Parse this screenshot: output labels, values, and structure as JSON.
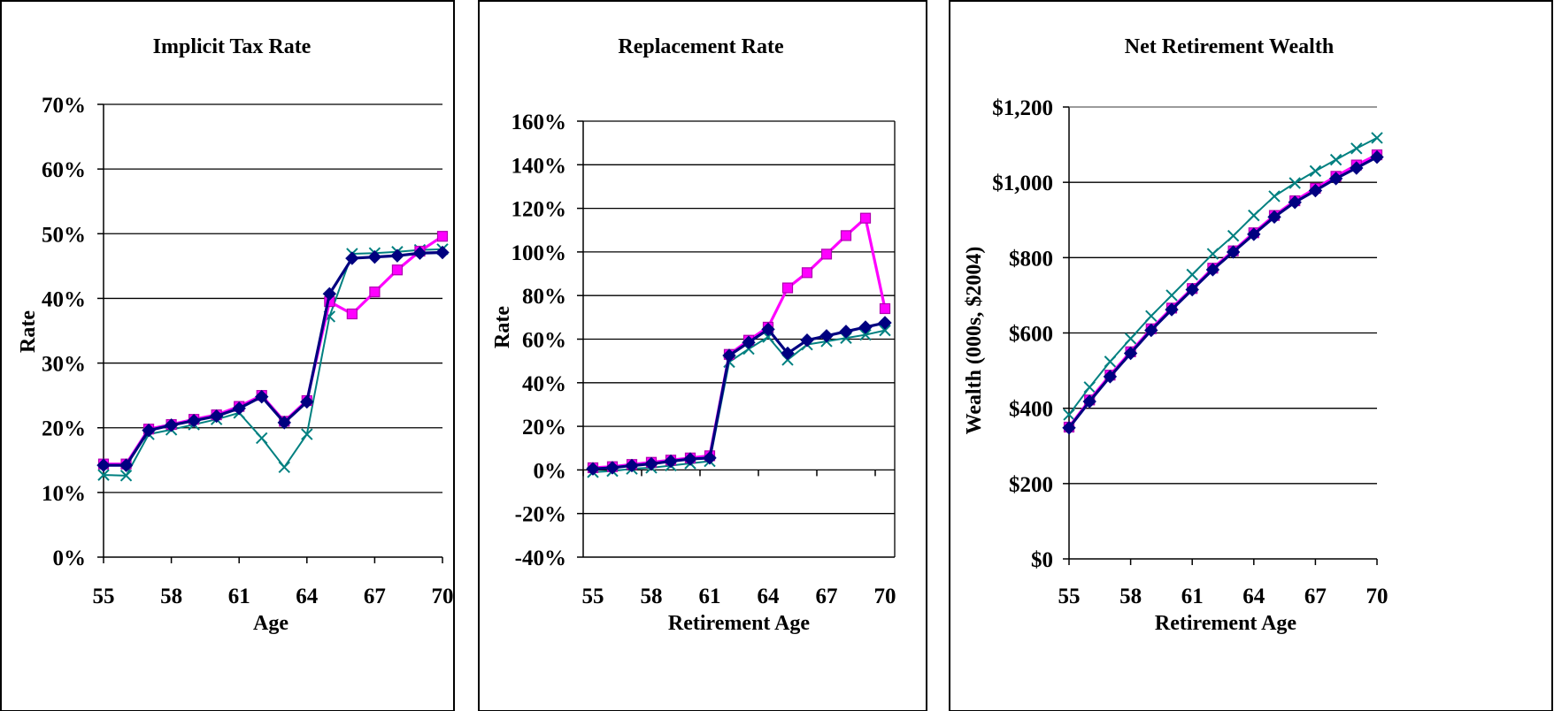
{
  "colors": {
    "frame": "#000000",
    "grid": "#000000",
    "series_a": "#000080",
    "series_b": "#ff00ff",
    "series_c": "#008080"
  },
  "chart_data": [
    {
      "type": "line",
      "title": "Implicit Tax Rate",
      "xlabel": "Age",
      "ylabel": "Rate",
      "x": [
        55,
        56,
        57,
        58,
        59,
        60,
        61,
        62,
        63,
        64,
        65,
        66,
        67,
        68,
        69,
        70
      ],
      "x_tick_labels": [
        "55",
        "58",
        "61",
        "64",
        "67",
        "70"
      ],
      "y_tick_labels": [
        "0%",
        "10%",
        "20%",
        "30%",
        "40%",
        "50%",
        "60%",
        "70%"
      ],
      "ylim": [
        0,
        70
      ],
      "grid": true,
      "series": [
        {
          "marker": "diamond",
          "color": "#000080",
          "values": [
            14.2,
            14.2,
            19.6,
            20.4,
            21.1,
            21.8,
            23.0,
            24.8,
            20.8,
            24.0,
            40.7,
            46.2,
            46.4,
            46.6,
            47.0,
            47.1
          ]
        },
        {
          "marker": "square",
          "color": "#ff00ff",
          "values": [
            14.4,
            14.4,
            19.8,
            20.5,
            21.3,
            22.0,
            23.3,
            25.0,
            21.0,
            24.2,
            39.5,
            37.6,
            41.0,
            44.4,
            47.3,
            49.6
          ]
        },
        {
          "marker": "x",
          "color": "#008080",
          "values": [
            12.7,
            12.6,
            19.0,
            19.7,
            20.5,
            21.3,
            22.3,
            18.4,
            13.9,
            19.0,
            37.2,
            46.9,
            47.0,
            47.2,
            47.5,
            47.6
          ]
        }
      ]
    },
    {
      "type": "line",
      "title": "Replacement Rate",
      "xlabel": "Retirement Age",
      "ylabel": "Rate",
      "x": [
        55,
        56,
        57,
        58,
        59,
        60,
        61,
        62,
        63,
        64,
        65,
        66,
        67,
        68,
        69,
        70
      ],
      "x_tick_labels": [
        "55",
        "58",
        "61",
        "64",
        "67",
        "70"
      ],
      "y_tick_labels": [
        "-40%",
        "-20%",
        "0%",
        "20%",
        "40%",
        "60%",
        "80%",
        "100%",
        "120%",
        "140%",
        "160%"
      ],
      "ylim": [
        -40,
        160
      ],
      "grid": true,
      "series": [
        {
          "marker": "diamond",
          "color": "#000080",
          "values": [
            0.5,
            1.0,
            2.0,
            2.8,
            4.0,
            5.0,
            5.5,
            52.5,
            58.5,
            64.5,
            53.5,
            59.5,
            61.5,
            63.5,
            65.5,
            67.5
          ]
        },
        {
          "marker": "square",
          "color": "#ff00ff",
          "values": [
            1.0,
            1.5,
            2.5,
            3.5,
            4.5,
            5.5,
            6.5,
            53.0,
            59.5,
            65.5,
            83.5,
            90.5,
            99.0,
            107.5,
            115.5,
            74.0
          ]
        },
        {
          "marker": "x",
          "color": "#008080",
          "values": [
            -1.0,
            -0.5,
            0.5,
            1.0,
            2.0,
            3.0,
            4.0,
            49.5,
            55.5,
            61.0,
            50.5,
            57.5,
            59.0,
            60.5,
            62.0,
            64.0
          ]
        }
      ]
    },
    {
      "type": "line",
      "title": "Net Retirement Wealth",
      "xlabel": "Retirement Age",
      "ylabel": "Wealth (000s, $2004)",
      "x": [
        55,
        56,
        57,
        58,
        59,
        60,
        61,
        62,
        63,
        64,
        65,
        66,
        67,
        68,
        69,
        70
      ],
      "x_tick_labels": [
        "55",
        "58",
        "61",
        "64",
        "67",
        "70"
      ],
      "y_tick_labels": [
        "$0",
        "$200",
        "$400",
        "$600",
        "$800",
        "$1,000",
        "$1,200"
      ],
      "ylim": [
        0,
        1200
      ],
      "grid": true,
      "series": [
        {
          "marker": "diamond",
          "color": "#000080",
          "values": [
            348,
            418,
            484,
            546,
            607,
            662,
            715,
            768,
            815,
            862,
            908,
            947,
            978,
            1010,
            1038,
            1067
          ]
        },
        {
          "marker": "square",
          "color": "#ff00ff",
          "values": [
            350,
            422,
            488,
            550,
            611,
            666,
            718,
            772,
            818,
            866,
            912,
            951,
            984,
            1016,
            1046,
            1073
          ]
        },
        {
          "marker": "x",
          "color": "#008080",
          "values": [
            383,
            456,
            524,
            585,
            645,
            700,
            755,
            810,
            858,
            912,
            963,
            998,
            1030,
            1060,
            1090,
            1118
          ]
        }
      ]
    }
  ]
}
